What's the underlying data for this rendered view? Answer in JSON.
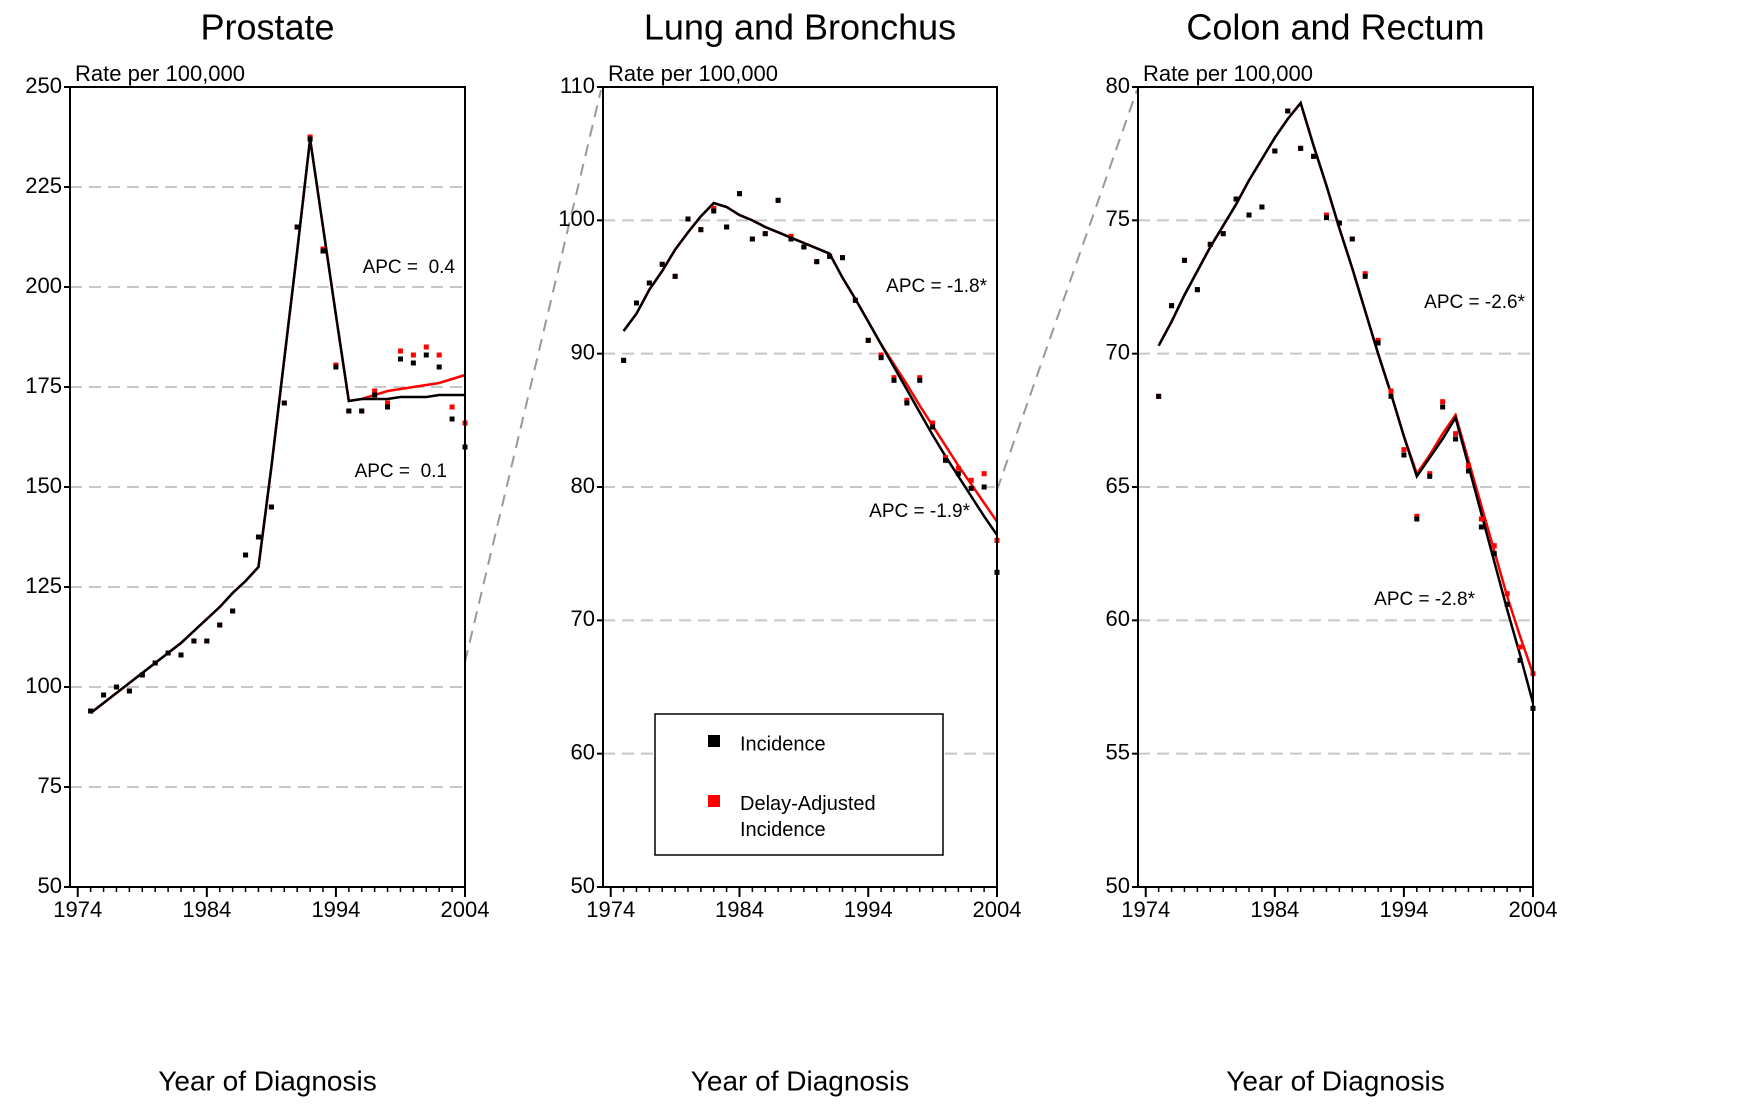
{
  "chart_data": [
    {
      "type": "joinpoint",
      "title": "Prostate",
      "ylabel": "Rate per 100,000",
      "xlabel": "Year of Diagnosis",
      "x": [
        1975,
        1976,
        1977,
        1978,
        1979,
        1980,
        1981,
        1982,
        1983,
        1984,
        1985,
        1986,
        1987,
        1988,
        1989,
        1990,
        1991,
        1992,
        1993,
        1994,
        1995,
        1996,
        1997,
        1998,
        1999,
        2000,
        2001,
        2002,
        2003,
        2004
      ],
      "xlim": [
        1973.4,
        2004
      ],
      "xticks": [
        1974,
        1984,
        1994,
        2004
      ],
      "ylim": [
        50,
        250
      ],
      "yticks": [
        50,
        75,
        100,
        125,
        150,
        175,
        200,
        225,
        250
      ],
      "grid": true,
      "series": [
        {
          "color": "#ff0000",
          "values": [
            94,
            98,
            100,
            99,
            103,
            106,
            108.5,
            108,
            111.5,
            111.5,
            115.5,
            119,
            133,
            137.5,
            145,
            171,
            215,
            237.5,
            209.5,
            180.5,
            169,
            169,
            174,
            171,
            184,
            183,
            185,
            183,
            170,
            166
          ]
        },
        {
          "color": "#000000",
          "values": [
            94,
            98,
            100,
            99,
            103,
            106,
            108.5,
            108,
            111.5,
            111.5,
            115.5,
            119,
            133,
            137.5,
            145,
            171,
            215,
            237,
            209,
            180,
            169,
            169,
            173,
            170,
            182,
            181,
            183,
            180,
            167,
            160
          ]
        }
      ],
      "fits": [
        {
          "color": "#ff0000",
          "values": [
            93.5,
            96,
            98.5,
            101,
            103.5,
            106,
            108.5,
            111,
            114,
            117,
            120,
            123.5,
            126.5,
            130,
            155,
            182,
            209,
            237,
            215,
            193,
            171.5,
            172,
            173,
            174,
            174.5,
            175,
            175.5,
            176,
            177,
            178
          ]
        },
        {
          "color": "#000000",
          "values": [
            93.5,
            96,
            98.5,
            101,
            103.5,
            106,
            108.5,
            111,
            114,
            117,
            120,
            123.5,
            126.5,
            130,
            155,
            182,
            209,
            237,
            215,
            193,
            171.5,
            172,
            172,
            172,
            172.5,
            172.5,
            172.5,
            173,
            173,
            173
          ]
        }
      ],
      "annotations": [
        {
          "text": "APC =  0.4",
          "color": "#ff0000"
        },
        {
          "text": "APC =  0.1",
          "color": "#000000"
        }
      ]
    },
    {
      "type": "joinpoint",
      "title": "Lung and Bronchus",
      "ylabel": "Rate per 100,000",
      "xlabel": "Year of Diagnosis",
      "x": [
        1975,
        1976,
        1977,
        1978,
        1979,
        1980,
        1981,
        1982,
        1983,
        1984,
        1985,
        1986,
        1987,
        1988,
        1989,
        1990,
        1991,
        1992,
        1993,
        1994,
        1995,
        1996,
        1997,
        1998,
        1999,
        2000,
        2001,
        2002,
        2003,
        2004
      ],
      "xlim": [
        1973.4,
        2004
      ],
      "xticks": [
        1974,
        1984,
        1994,
        2004
      ],
      "ylim": [
        50,
        110
      ],
      "yticks": [
        50,
        60,
        70,
        80,
        90,
        100,
        110
      ],
      "grid": true,
      "legend": "lower center",
      "series": [
        {
          "name": "Delay-Adjusted Incidence",
          "color": "#ff0000",
          "values": [
            89.5,
            93.8,
            95.3,
            96.7,
            95.8,
            100.1,
            99.3,
            100.9,
            99.5,
            102,
            98.6,
            99,
            101.5,
            98.8,
            98,
            96.9,
            97.3,
            97.2,
            94,
            91,
            89.9,
            88.2,
            86.5,
            88.2,
            84.8,
            82.2,
            81.4,
            80.5,
            81,
            76
          ]
        },
        {
          "name": "Incidence",
          "color": "#000000",
          "values": [
            89.5,
            93.8,
            95.3,
            96.7,
            95.8,
            100.1,
            99.3,
            100.7,
            99.5,
            102,
            98.6,
            99,
            101.5,
            98.6,
            98,
            96.9,
            97.3,
            97.2,
            94,
            91,
            89.7,
            88,
            86.3,
            88,
            84.5,
            82,
            81,
            79.9,
            80,
            73.6
          ]
        }
      ],
      "fits": [
        {
          "color": "#ff0000",
          "values": [
            91.7,
            93,
            94.8,
            96.2,
            97.8,
            99.1,
            100.3,
            101.3,
            101,
            100.4,
            100,
            99.5,
            99.1,
            98.7,
            98.3,
            97.9,
            97.5,
            95.7,
            94.1,
            92.4,
            90.7,
            89.2,
            87.7,
            86.1,
            84.6,
            83.1,
            81.6,
            80.2,
            78.8,
            77.4
          ]
        },
        {
          "color": "#000000",
          "values": [
            91.7,
            93,
            94.8,
            96.2,
            97.8,
            99.1,
            100.3,
            101.3,
            101,
            100.4,
            100,
            99.5,
            99.1,
            98.7,
            98.3,
            97.9,
            97.5,
            95.7,
            94.1,
            92.4,
            90.7,
            89,
            87.3,
            85.6,
            83.9,
            82.3,
            80.8,
            79.3,
            77.8,
            76.4
          ]
        }
      ],
      "annotations": [
        {
          "text": "APC = -1.8*",
          "color": "#ff0000"
        },
        {
          "text": "APC = -1.9*",
          "color": "#000000"
        }
      ]
    },
    {
      "type": "joinpoint",
      "title": "Colon and Rectum",
      "ylabel": "Rate per 100,000",
      "xlabel": "Year of Diagnosis",
      "x": [
        1975,
        1976,
        1977,
        1978,
        1979,
        1980,
        1981,
        1982,
        1983,
        1984,
        1985,
        1986,
        1987,
        1988,
        1989,
        1990,
        1991,
        1992,
        1993,
        1994,
        1995,
        1996,
        1997,
        1998,
        1999,
        2000,
        2001,
        2002,
        2003,
        2004
      ],
      "xlim": [
        1973.4,
        2004
      ],
      "xticks": [
        1974,
        1984,
        1994,
        2004
      ],
      "ylim": [
        50,
        80
      ],
      "yticks": [
        50,
        55,
        60,
        65,
        70,
        75,
        80
      ],
      "grid": true,
      "series": [
        {
          "color": "#ff0000",
          "values": [
            68.4,
            71.8,
            73.5,
            72.4,
            74.1,
            74.5,
            75.8,
            75.2,
            75.5,
            77.6,
            79.1,
            77.7,
            77.4,
            75.2,
            74.9,
            74.3,
            73,
            70.5,
            68.6,
            66.4,
            63.9,
            65.5,
            68.2,
            67,
            65.8,
            63.8,
            62.8,
            61,
            59,
            58
          ]
        },
        {
          "color": "#000000",
          "values": [
            68.4,
            71.8,
            73.5,
            72.4,
            74.1,
            74.5,
            75.8,
            75.2,
            75.5,
            77.6,
            79.1,
            77.7,
            77.4,
            75.1,
            74.9,
            74.3,
            72.9,
            70.4,
            68.4,
            66.2,
            63.8,
            65.4,
            68,
            66.8,
            65.6,
            63.5,
            62.5,
            60.6,
            58.5,
            56.7
          ]
        }
      ],
      "fits": [
        {
          "color": "#ff0000",
          "values": [
            70.3,
            71.2,
            72.2,
            73.1,
            74,
            74.8,
            75.6,
            76.5,
            77.3,
            78.1,
            78.8,
            79.4,
            77.8,
            76.3,
            74.7,
            73.2,
            71.6,
            70,
            68.5,
            66.9,
            65.5,
            66.2,
            67,
            67.7,
            66,
            64.3,
            62.6,
            60.9,
            59.4,
            58
          ]
        },
        {
          "color": "#000000",
          "values": [
            70.3,
            71.2,
            72.2,
            73.1,
            74,
            74.8,
            75.6,
            76.5,
            77.3,
            78.1,
            78.8,
            79.4,
            77.8,
            76.3,
            74.7,
            73.2,
            71.6,
            70,
            68.5,
            66.9,
            65.4,
            66.1,
            66.8,
            67.6,
            65.8,
            64,
            62.2,
            60.4,
            58.7,
            56.9
          ]
        }
      ],
      "annotations": [
        {
          "text": "APC = -2.6*",
          "color": "#ff0000"
        },
        {
          "text": "APC = -2.8*",
          "color": "#000000"
        }
      ]
    }
  ]
}
